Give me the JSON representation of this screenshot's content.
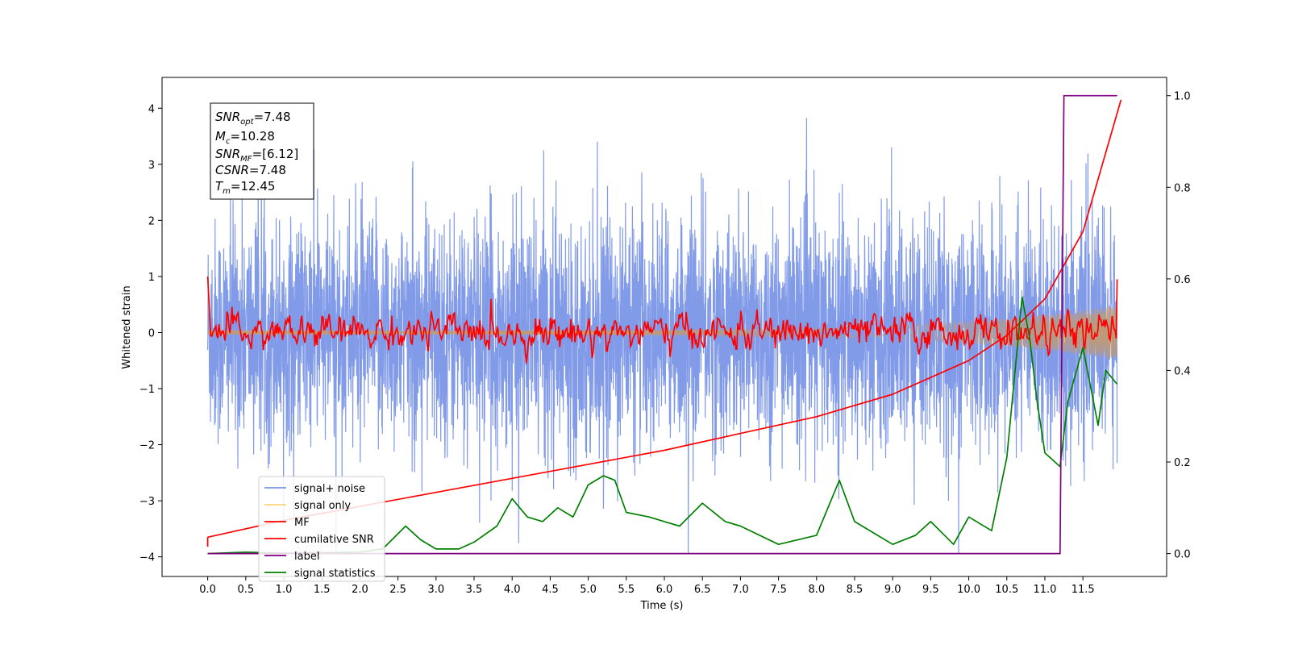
{
  "chart_data": {
    "type": "line",
    "xlabel": "Time (s)",
    "ylabel": "Whitened strain",
    "xlim": [
      -0.6,
      12.6
    ],
    "ylim_left": [
      -4.35,
      4.55
    ],
    "ylim_right": [
      -0.05,
      1.04
    ],
    "x_ticks": [
      "0.0",
      "0.5",
      "1.0",
      "1.5",
      "2.0",
      "2.5",
      "3.0",
      "3.5",
      "4.0",
      "4.5",
      "5.0",
      "5.5",
      "6.0",
      "6.5",
      "7.0",
      "7.5",
      "8.0",
      "8.5",
      "9.0",
      "9.5",
      "10.0",
      "10.5",
      "11.0",
      "11.5"
    ],
    "y_ticks_left": [
      "4",
      "3",
      "2",
      "1",
      "0",
      "−1",
      "−2",
      "−3",
      "−4"
    ],
    "y_ticks_right": [
      "1.0",
      "0.8",
      "0.6",
      "0.4",
      "0.2",
      "0.0"
    ],
    "legend_position": "lower-left",
    "annotation": {
      "snr_opt": {
        "name": "SNR",
        "sub": "opt",
        "value": "=7.48"
      },
      "mc": {
        "name": "M",
        "sub": "c",
        "value": "=10.28"
      },
      "snr_mf": {
        "name": "SNR",
        "sub": "MF",
        "value": "=[6.12]"
      },
      "csnr": {
        "name": "CSNR",
        "sub": "",
        "value": "=7.48"
      },
      "tm": {
        "name": "T",
        "sub": "m",
        "value": "=12.45"
      }
    },
    "series": [
      {
        "name": "signal+ noise",
        "color": "#7b96e8",
        "axis": "left",
        "description_points": "noise band approx ±2.5 with spikes to ±4"
      },
      {
        "name": "signal only",
        "color": "#ffd27f",
        "axis": "left"
      },
      {
        "name": "MF",
        "color": "#ff0000",
        "axis": "left"
      },
      {
        "name": "cumilative SNR",
        "color": "#ff0000",
        "axis": "left",
        "x": [
          0.0,
          1.0,
          2.0,
          3.0,
          4.0,
          5.0,
          6.0,
          7.0,
          8.0,
          9.0,
          10.0,
          10.5,
          11.0,
          11.5,
          12.0
        ],
        "y": [
          -3.65,
          -3.35,
          -3.1,
          -2.85,
          -2.6,
          -2.35,
          -2.1,
          -1.8,
          -1.5,
          -1.1,
          -0.5,
          -0.05,
          0.6,
          1.8,
          4.15
        ]
      },
      {
        "name": "label",
        "color": "#800080",
        "axis": "right",
        "x": [
          0.0,
          11.2,
          11.25,
          11.95
        ],
        "y": [
          0.0,
          0.0,
          1.0,
          1.0
        ]
      },
      {
        "name": "signal statistics",
        "color": "#008000",
        "axis": "right",
        "x": [
          0.0,
          0.5,
          1.0,
          1.5,
          2.0,
          2.3,
          2.6,
          2.8,
          3.0,
          3.3,
          3.5,
          3.8,
          4.0,
          4.2,
          4.4,
          4.6,
          4.8,
          5.0,
          5.2,
          5.35,
          5.5,
          5.8,
          6.0,
          6.2,
          6.5,
          6.8,
          7.0,
          7.5,
          8.0,
          8.3,
          8.5,
          8.8,
          9.0,
          9.3,
          9.5,
          9.8,
          10.0,
          10.3,
          10.5,
          10.7,
          10.8,
          10.9,
          11.0,
          11.2,
          11.3,
          11.5,
          11.7,
          11.8,
          11.95
        ],
        "y": [
          0.0,
          0.003,
          0.001,
          0.002,
          0.003,
          0.01,
          0.06,
          0.03,
          0.01,
          0.01,
          0.025,
          0.06,
          0.12,
          0.08,
          0.07,
          0.1,
          0.08,
          0.15,
          0.17,
          0.16,
          0.09,
          0.08,
          0.07,
          0.06,
          0.11,
          0.07,
          0.06,
          0.02,
          0.04,
          0.16,
          0.07,
          0.04,
          0.02,
          0.04,
          0.07,
          0.02,
          0.08,
          0.05,
          0.21,
          0.56,
          0.47,
          0.33,
          0.22,
          0.19,
          0.33,
          0.45,
          0.28,
          0.4,
          0.37
        ]
      }
    ]
  }
}
